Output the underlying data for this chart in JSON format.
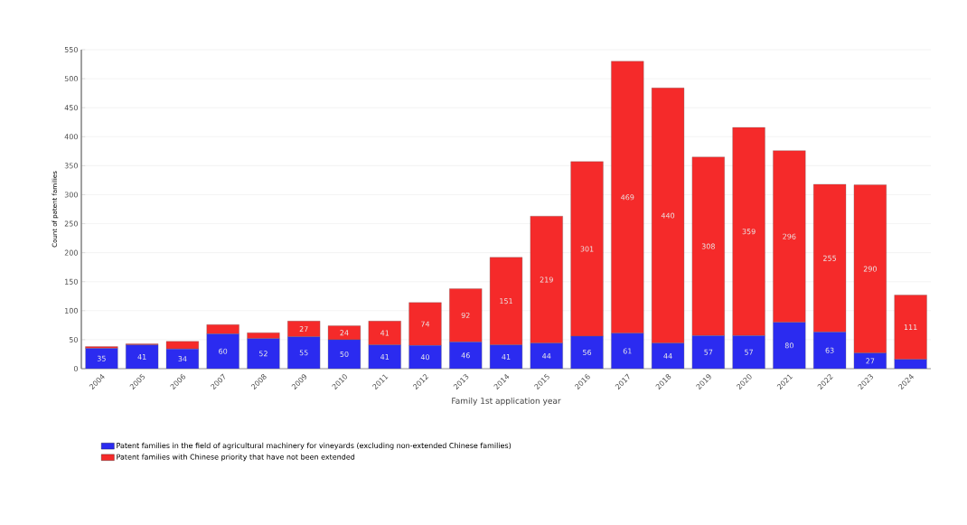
{
  "chart_data": {
    "type": "bar",
    "stacked": true,
    "xlabel": "Family 1st application year",
    "ylabel": "Count of patent families",
    "categories": [
      "2004",
      "2005",
      "2006",
      "2007",
      "2008",
      "2009",
      "2010",
      "2011",
      "2012",
      "2013",
      "2014",
      "2015",
      "2016",
      "2017",
      "2018",
      "2019",
      "2020",
      "2021",
      "2022",
      "2023",
      "2024"
    ],
    "series": [
      {
        "name": "Patent families in the field of agricultural machinery for vineyards (excluding non-extended Chinese families)",
        "color": "#2b2bf0",
        "values": [
          35,
          41,
          34,
          60,
          52,
          55,
          50,
          41,
          40,
          46,
          41,
          44,
          56,
          61,
          44,
          57,
          57,
          80,
          63,
          27,
          16
        ],
        "value_labels": [
          "35",
          "41",
          "34",
          "60",
          "52",
          "55",
          "50",
          "41",
          "40",
          "46",
          "41",
          "44",
          "56",
          "61",
          "44",
          "57",
          "57",
          "80",
          "63",
          "27",
          null
        ]
      },
      {
        "name": "Patent families with Chinese priority that have not been extended",
        "color": "#f52a2a",
        "values": [
          3,
          2,
          13,
          16,
          10,
          27,
          24,
          41,
          74,
          92,
          151,
          219,
          301,
          469,
          440,
          308,
          359,
          296,
          255,
          290,
          111
        ],
        "value_labels": [
          null,
          null,
          null,
          null,
          null,
          "27",
          "24",
          "41",
          "74",
          "92",
          "151",
          "219",
          "301",
          "469",
          "440",
          "308",
          "359",
          "296",
          "255",
          "290",
          "111"
        ]
      }
    ],
    "ylim": [
      0,
      550
    ],
    "yticks": [
      0,
      50,
      100,
      150,
      200,
      250,
      300,
      350,
      400,
      450,
      500,
      550
    ],
    "grid": "y",
    "legend": "bottom"
  }
}
